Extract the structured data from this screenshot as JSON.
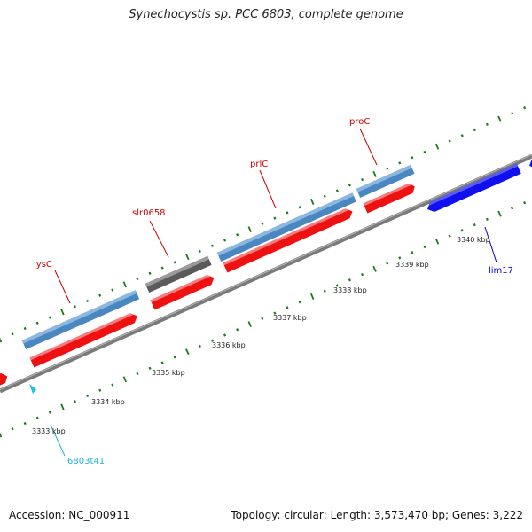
{
  "title": "Synechocystis sp. PCC 6803, complete genome",
  "footer": {
    "accession": "Accession: NC_000911",
    "summary": "Topology: circular; Length: 3,573,470 bp; Genes: 3,222"
  },
  "scale_labels": [
    "3333 kbp",
    "3334 kbp",
    "3335 kbp",
    "3336 kbp",
    "3337 kbp",
    "3338 kbp",
    "3339 kbp",
    "3340 kbp"
  ],
  "genes": [
    {
      "name": "lysC",
      "color": "#cc0000"
    },
    {
      "name": "slr0658",
      "color": "#cc0000"
    },
    {
      "name": "prlC",
      "color": "#cc0000"
    },
    {
      "name": "proC",
      "color": "#cc0000"
    },
    {
      "name": "lim17",
      "color": "#0000cc"
    },
    {
      "name": "6803t41",
      "color": "#1fb3d6"
    }
  ],
  "colors": {
    "backbone": "#7a7a7a",
    "cds_forward": "#ee1111",
    "gene_forward": "#4a86c0",
    "gene_other": "#5a5a5a",
    "cds_reverse": "#1010ee",
    "trna": "#22c0e0",
    "ticks": "#1e7a1e"
  }
}
